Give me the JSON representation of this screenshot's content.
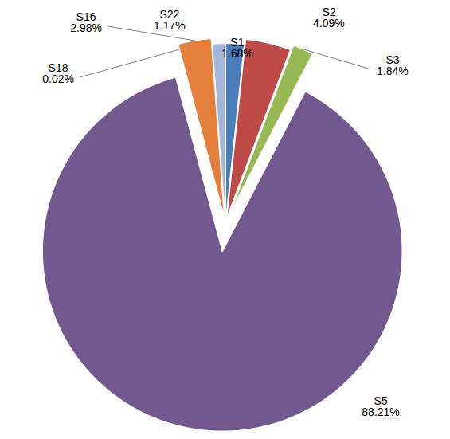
{
  "chart_data": {
    "type": "pie",
    "categories": [
      "S1",
      "S2",
      "S3",
      "S5",
      "S18",
      "S16",
      "S22"
    ],
    "values": [
      1.68,
      4.09,
      1.84,
      88.21,
      0.02,
      2.98,
      1.17
    ],
    "value_labels": [
      "1.68%",
      "4.09%",
      "1.84%",
      "88.21%",
      "0.02%",
      "2.98%",
      "1.17%"
    ],
    "colors": [
      "#4a7ebb",
      "#be4b48",
      "#98b954",
      "#71588f",
      "#4bacc6",
      "#e5803c",
      "#a5b6dd"
    ],
    "data_labels": true
  }
}
